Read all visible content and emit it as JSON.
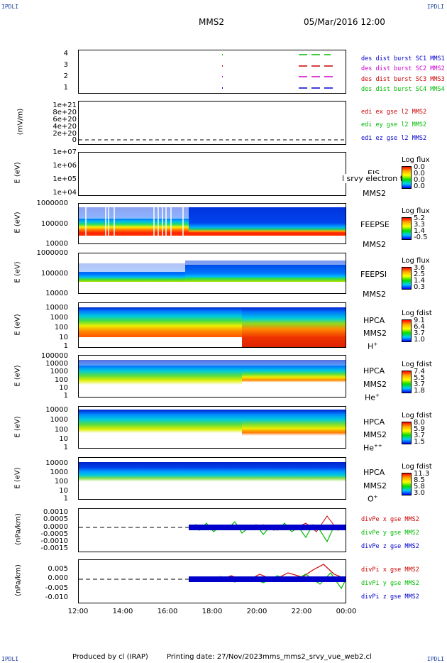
{
  "corners": {
    "top_left": "IPDLI",
    "top_right": "IPDLI",
    "bottom_left": "IPDLI",
    "bottom_right": "IPDLI"
  },
  "header": {
    "spacecraft": "MMS2",
    "date": "05/Mar/2016 12:00"
  },
  "footer": {
    "produced_by": "Produced by cl (IRAP)",
    "printing_date": "Printing date: 27/Nov/2023",
    "script": "mms_mms2_srvy_vue_web2.cl"
  },
  "x_ticks": [
    "12:00",
    "14:00",
    "16:00",
    "18:00",
    "20:00",
    "22:00",
    "00:00"
  ],
  "panels": {
    "burst": {
      "ticks": [
        "4",
        "3",
        "2",
        "1"
      ],
      "legend": [
        {
          "text": "des dist burst SC1 MMS1",
          "color": "#0000cc"
        },
        {
          "text": "des dist burst SC2 MMS2",
          "color": "#cc00cc"
        },
        {
          "text": "des dist burst SC3 MMS3",
          "color": "#cc0000"
        },
        {
          "text": "des dist burst SC4 MMS4",
          "color": "#00bb00"
        }
      ]
    },
    "efield": {
      "ylabel": "(mV/m)",
      "ticks": [
        "1e+21",
        "8e+20",
        "6e+20",
        "4e+20",
        "2e+20",
        "0"
      ],
      "legend": [
        {
          "text": "edi ex gse l2 MMS2",
          "color": "#cc0000"
        },
        {
          "text": "edi ey gse l2 MMS2",
          "color": "#00bb00"
        },
        {
          "text": "edi ez gse l2 MMS2",
          "color": "#0000cc"
        }
      ]
    },
    "eis": {
      "ylabel": "E (eV)",
      "ticks": [
        "1e+07",
        "1e+06",
        "1e+05",
        "1e+04"
      ],
      "inst": [
        "EIS",
        "MMS2"
      ],
      "overlay": "l srvy electron to",
      "cb_title": "Log flux",
      "cb_values": [
        "0.0",
        "0.0",
        "0.0",
        "0.0"
      ]
    },
    "feepse": {
      "ylabel": "E (eV)",
      "ticks": [
        "1000000",
        "100000",
        "10000"
      ],
      "inst": [
        "FEEPSE",
        "MMS2"
      ],
      "cb_title": "Log flux",
      "cb_values": [
        "5.2",
        "3.3",
        "1.4",
        "-0.5"
      ]
    },
    "feepsi": {
      "ylabel": "E (eV)",
      "ticks": [
        "1000000",
        "100000",
        "10000"
      ],
      "inst": [
        "FEEPSI",
        "MMS2"
      ],
      "cb_title": "Log flux",
      "cb_values": [
        "3.6",
        "2.5",
        "1.4",
        "0.3"
      ]
    },
    "hpca_h": {
      "ylabel": "E (eV)",
      "ticks": [
        "10000",
        "1000",
        "100",
        "10",
        "1"
      ],
      "inst": [
        "HPCA",
        "MMS2",
        "H",
        "+"
      ],
      "cb_title": "Log fdist",
      "cb_values": [
        "9.1",
        "6.4",
        "3.7",
        "1.0"
      ]
    },
    "hpca_he": {
      "ylabel": "E (eV)",
      "ticks": [
        "100000",
        "10000",
        "1000",
        "100",
        "10",
        "1"
      ],
      "inst": [
        "HPCA",
        "MMS2",
        "He",
        "+"
      ],
      "cb_title": "Log fdist",
      "cb_values": [
        "7.4",
        "5.5",
        "3.7",
        "1.8"
      ]
    },
    "hpca_hepp": {
      "ylabel": "E (eV)",
      "ticks": [
        "10000",
        "1000",
        "100",
        "10",
        "1"
      ],
      "inst": [
        "HPCA",
        "MMS2",
        "He",
        "++"
      ],
      "cb_title": "Log fdist",
      "cb_values": [
        "8.0",
        "5.9",
        "3.7",
        "1.5"
      ]
    },
    "hpca_o": {
      "ylabel": "E (eV)",
      "ticks": [
        "10000",
        "1000",
        "100",
        "10",
        "1"
      ],
      "inst": [
        "HPCA",
        "MMS2",
        "O",
        "+"
      ],
      "cb_title": "Log fdist",
      "cb_values": [
        "11.3",
        "8.5",
        "5.8",
        "3.0"
      ]
    },
    "divpe": {
      "ylabel": "(nPa/km)",
      "ticks": [
        "0.0010",
        "0.0005",
        "0.0000",
        "-0.0005",
        "-0.0010",
        "-0.0015"
      ],
      "legend": [
        {
          "text": "divPe x gse MMS2",
          "color": "#cc0000"
        },
        {
          "text": "divPe y gse MMS2",
          "color": "#00bb00"
        },
        {
          "text": "divPe z gse MMS2",
          "color": "#0000cc"
        }
      ]
    },
    "divpi": {
      "ylabel": "(nPa/km)",
      "ticks": [
        "0.005",
        "0.000",
        "-0.005",
        "-0.010"
      ],
      "legend": [
        {
          "text": "divPi x gse MMS2",
          "color": "#cc0000"
        },
        {
          "text": "divPi y gse MMS2",
          "color": "#00bb00"
        },
        {
          "text": "divPi z gse MMS2",
          "color": "#0000cc"
        }
      ]
    }
  },
  "chart_data": {
    "type": "heatmap",
    "x_range": [
      "12:00",
      "00:00"
    ],
    "spectrograms": [
      {
        "instrument": "FEEPSE MMS2",
        "quantity": "Log flux",
        "y_range": [
          10000,
          1000000
        ],
        "scale": "log",
        "color_range": [
          -0.5,
          5.2
        ]
      },
      {
        "instrument": "FEEPSI MMS2",
        "quantity": "Log flux",
        "y_range": [
          10000,
          1000000
        ],
        "scale": "log",
        "color_range": [
          0.3,
          3.6
        ]
      },
      {
        "instrument": "HPCA MMS2 H+",
        "quantity": "Log fdist",
        "y_range": [
          1,
          10000
        ],
        "scale": "log",
        "color_range": [
          1.0,
          9.1
        ]
      },
      {
        "instrument": "HPCA MMS2 He+",
        "quantity": "Log fdist",
        "y_range": [
          1,
          100000
        ],
        "scale": "log",
        "color_range": [
          1.8,
          7.4
        ]
      },
      {
        "instrument": "HPCA MMS2 He++",
        "quantity": "Log fdist",
        "y_range": [
          1,
          10000
        ],
        "scale": "log",
        "color_range": [
          1.5,
          8.0
        ]
      },
      {
        "instrument": "HPCA MMS2 O+",
        "quantity": "Log fdist",
        "y_range": [
          1,
          10000
        ],
        "scale": "log",
        "color_range": [
          3.0,
          11.3
        ]
      }
    ],
    "colors": {
      "red": "#cc0000",
      "green": "#00bb00",
      "blue": "#0000cc",
      "magenta": "#cc00cc"
    }
  }
}
